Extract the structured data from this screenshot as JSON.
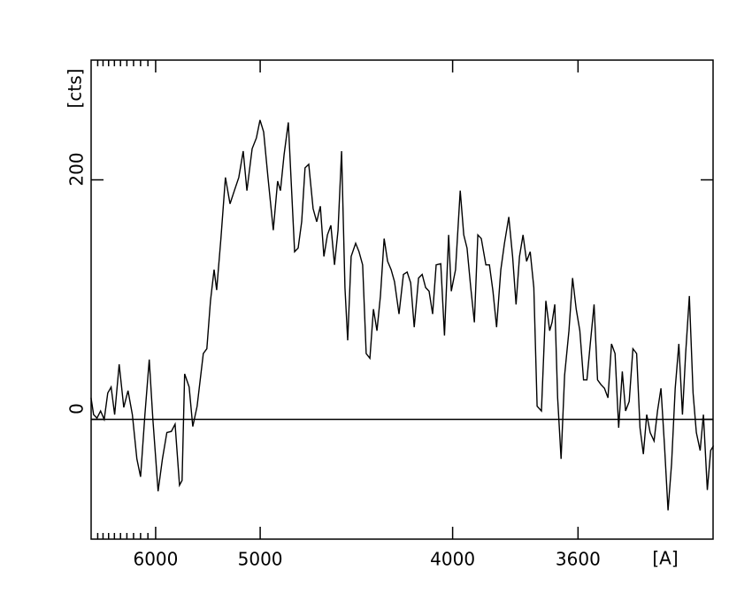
{
  "chart_data": {
    "type": "line",
    "xscale": "inverse-square",
    "ylabel": "[cts]",
    "xlabel": "[A]",
    "xlim": [
      7030,
      3280
    ],
    "xticks": [
      6000,
      5000,
      4000,
      3600
    ],
    "xminorticks": [
      6900,
      6800,
      6700,
      6600,
      6500,
      6400,
      6300,
      6200,
      6100
    ],
    "ylim": [
      -100,
      300
    ],
    "yticks": [
      0,
      200
    ],
    "zero_line": true,
    "color": "#000000",
    "x": [
      7032,
      6981,
      6914,
      6846,
      6779,
      6715,
      6656,
      6596,
      6522,
      6448,
      6383,
      6318,
      6252,
      6200,
      6140,
      6082,
      6035,
      5969,
      5916,
      5863,
      5811,
      5769,
      5720,
      5692,
      5664,
      5617,
      5580,
      5536,
      5476,
      5442,
      5408,
      5375,
      5352,
      5314,
      5275,
      5236,
      5200,
      5164,
      5129,
      5100,
      5060,
      5028,
      5001,
      4975,
      4944,
      4907,
      4877,
      4858,
      4834,
      4806,
      4789,
      4766,
      4744,
      4722,
      4701,
      4679,
      4653,
      4632,
      4611,
      4591,
      4571,
      4552,
      4532,
      4513,
      4494,
      4476,
      4462,
      4444,
      4421,
      4404,
      4386,
      4369,
      4351,
      4334,
      4317,
      4301,
      4284,
      4268,
      4252,
      4237,
      4217,
      4198,
      4182,
      4167,
      4152,
      4134,
      4119,
      4105,
      4091,
      4077,
      4063,
      4045,
      4031,
      4015,
      4005,
      3989,
      3972,
      3959,
      3947,
      3934,
      3921,
      3909,
      3897,
      3881,
      3869,
      3857,
      3845,
      3831,
      3819,
      3805,
      3793,
      3782,
      3771,
      3760,
      3749,
      3738,
      3727,
      3717,
      3704,
      3691,
      3680,
      3673,
      3665,
      3657,
      3647,
      3637,
      3625,
      3615,
      3605,
      3595,
      3585,
      3576,
      3567,
      3557,
      3548,
      3539,
      3530,
      3521,
      3512,
      3503,
      3494,
      3485,
      3477,
      3468,
      3459,
      3450,
      3442,
      3434,
      3426,
      3418,
      3409,
      3401,
      3393,
      3385,
      3377,
      3369,
      3361,
      3353,
      3345,
      3338,
      3330,
      3322,
      3315,
      3307,
      3300,
      3292,
      3285,
      3279
    ],
    "values": [
      18,
      4,
      1,
      7,
      0,
      22,
      27,
      4,
      46,
      10,
      24,
      4,
      -33,
      -48,
      4,
      50,
      0,
      -60,
      -33,
      -11,
      -10,
      -4,
      -55,
      -51,
      38,
      27,
      -6,
      11,
      55,
      59,
      99,
      125,
      108,
      151,
      202,
      180,
      191,
      202,
      224,
      191,
      226,
      235,
      250,
      240,
      202,
      158,
      199,
      191,
      221,
      248,
      202,
      140,
      143,
      165,
      210,
      213,
      176,
      165,
      178,
      136,
      154,
      162,
      129,
      158,
      224,
      110,
      66,
      136,
      147,
      140,
      129,
      55,
      51,
      92,
      74,
      103,
      151,
      132,
      125,
      115,
      88,
      121,
      123,
      114,
      77,
      118,
      121,
      110,
      107,
      88,
      129,
      130,
      70,
      154,
      107,
      125,
      191,
      154,
      143,
      110,
      81,
      154,
      151,
      129,
      129,
      107,
      77,
      125,
      147,
      169,
      136,
      96,
      136,
      154,
      132,
      140,
      110,
      11,
      7,
      99,
      74,
      81,
      96,
      18,
      -33,
      37,
      74,
      118,
      92,
      74,
      33,
      33,
      63,
      96,
      33,
      29,
      26,
      18,
      63,
      55,
      -7,
      40,
      7,
      15,
      59,
      55,
      -7,
      -29,
      4,
      -11,
      -18,
      7,
      26,
      -22,
      -76,
      -37,
      26,
      63,
      4,
      55,
      103,
      22,
      -11,
      -26,
      4,
      -59,
      -26,
      -22
    ]
  }
}
